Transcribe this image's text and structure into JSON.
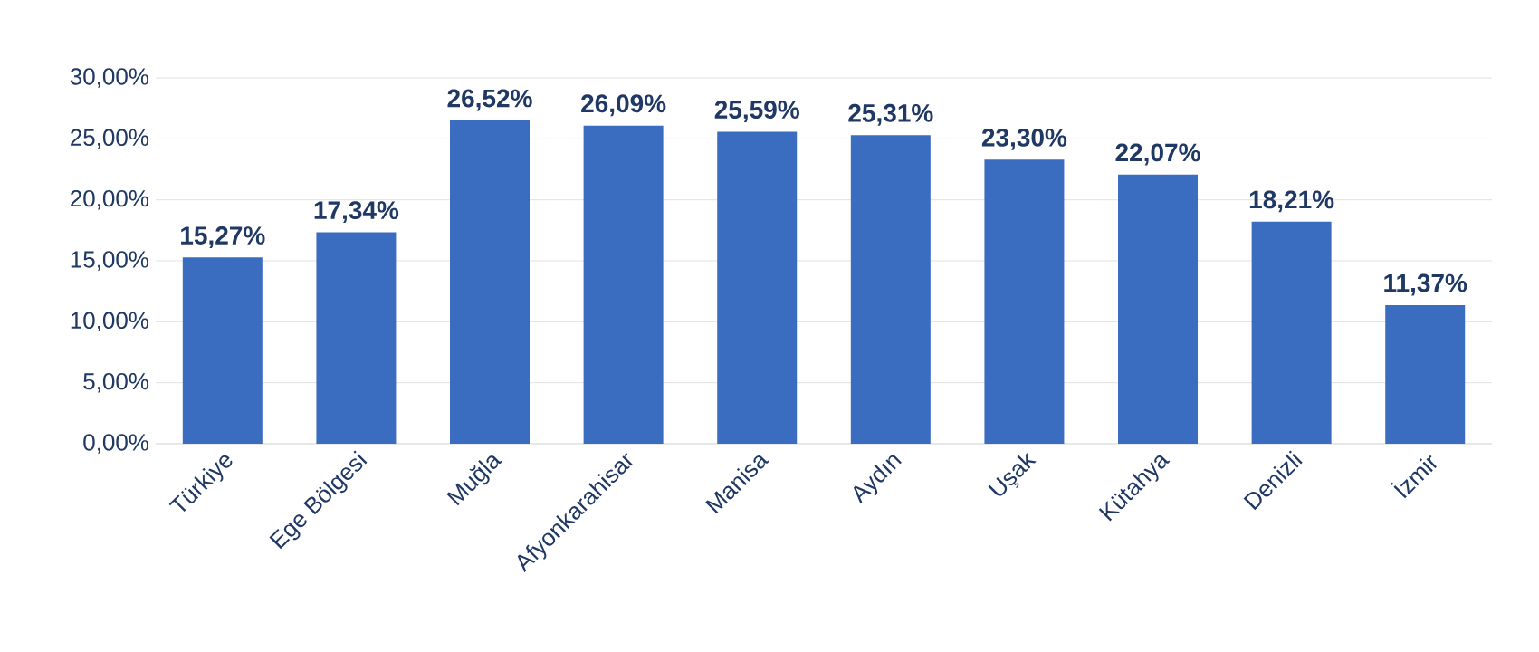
{
  "chart_data": {
    "type": "bar",
    "categories": [
      "Türkiye",
      "Ege Bölgesi",
      "Muğla",
      "Afyonkarahisar",
      "Manisa",
      "Aydın",
      "Uşak",
      "Kütahya",
      "Denizli",
      "İzmir"
    ],
    "values": [
      15.27,
      17.34,
      26.52,
      26.09,
      25.59,
      25.31,
      23.3,
      22.07,
      18.21,
      11.37
    ],
    "value_labels": [
      "15,27%",
      "17,34%",
      "26,52%",
      "26,09%",
      "25,59%",
      "25,31%",
      "23,30%",
      "22,07%",
      "18,21%",
      "11,37%"
    ],
    "color": "#3a6cc0",
    "ylim": [
      0,
      30
    ],
    "yticks": [
      {
        "value": 0,
        "label": "0,00%"
      },
      {
        "value": 5,
        "label": "5,00%"
      },
      {
        "value": 10,
        "label": "10,00%"
      },
      {
        "value": 15,
        "label": "15,00%"
      },
      {
        "value": 20,
        "label": "20,00%"
      },
      {
        "value": 25,
        "label": "25,00%"
      },
      {
        "value": 30,
        "label": "30,00%"
      }
    ],
    "grid": "y"
  }
}
